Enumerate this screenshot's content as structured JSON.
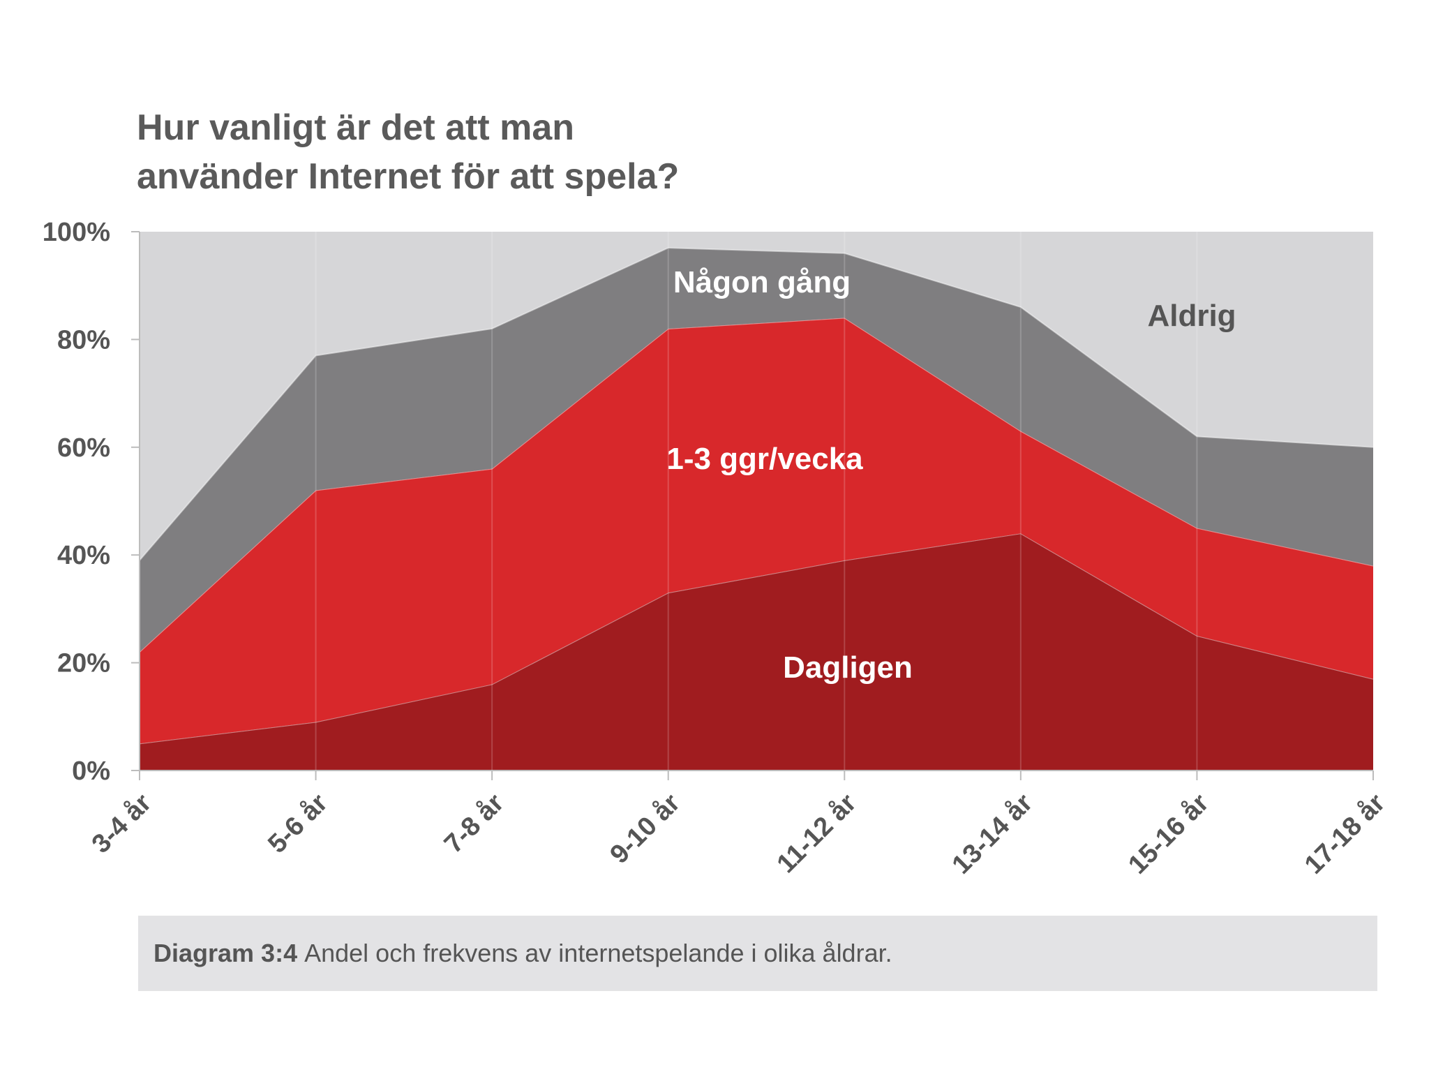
{
  "title": {
    "line1": "Hur vanligt är det att man",
    "line2": "använder Internet för att spela?"
  },
  "caption": {
    "label": "Diagram 3:4",
    "text": "Andel och frekvens av internetspelande i olika åldrar."
  },
  "colors": {
    "aldrig": "#d6d6d8",
    "nagon_gang": "#7f7e80",
    "veckovis": "#d8282b",
    "dagligen": "#a01c1f",
    "axis_text": "#555555",
    "label_light": "#ffffff",
    "label_dark": "#555555"
  },
  "chart_data": {
    "type": "area",
    "stacked": true,
    "categories": [
      "3-4 år",
      "5-6 år",
      "7-8 år",
      "9-10 år",
      "11-12 år",
      "13-14 år",
      "15-16 år",
      "17-18 år"
    ],
    "series": [
      {
        "name": "Dagligen",
        "values": [
          5,
          9,
          16,
          33,
          39,
          44,
          25,
          17
        ]
      },
      {
        "name": "1-3 ggr/vecka",
        "values": [
          17,
          43,
          40,
          49,
          45,
          19,
          20,
          21
        ]
      },
      {
        "name": "Någon gång",
        "values": [
          17,
          25,
          26,
          15,
          12,
          23,
          17,
          22
        ]
      },
      {
        "name": "Aldrig",
        "values": [
          61,
          23,
          18,
          3,
          4,
          14,
          38,
          40
        ]
      }
    ],
    "ylim": [
      0,
      100
    ],
    "yticks": [
      "0%",
      "20%",
      "40%",
      "60%",
      "80%",
      "100%"
    ],
    "xlabel": "",
    "ylabel": "",
    "grid": true,
    "legend": "inline labels"
  }
}
